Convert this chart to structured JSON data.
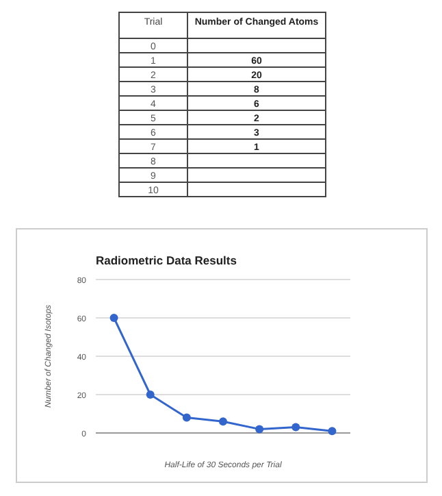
{
  "chart_data": [
    {
      "type": "heatmap",
      "ylabel": "Trial",
      "categories": [
        "Number of Changed Atoms"
      ],
      "y_categories": [
        "0",
        "1",
        "2",
        "3",
        "4",
        "5",
        "6",
        "7",
        "8",
        "9",
        "10"
      ],
      "cells": [
        [
          null
        ],
        [
          60
        ],
        [
          20
        ],
        [
          8
        ],
        [
          6
        ],
        [
          2
        ],
        [
          3
        ],
        [
          1
        ],
        [
          null
        ],
        [
          null
        ],
        [
          null
        ]
      ],
      "data_labels": true
    },
    {
      "type": "line",
      "title": "Radiometric Data Results",
      "xlabel": "Half-Life of 30 Seconds per Trial",
      "ylabel": "Number of Changed Isotops",
      "categories": [
        null,
        null,
        null,
        null,
        null,
        null,
        null
      ],
      "values": [
        60,
        20,
        8,
        6,
        2,
        3,
        1
      ],
      "color": "#3366cc",
      "ylim": [
        0,
        80
      ],
      "yticks": [
        0,
        20,
        40,
        60,
        80
      ],
      "grid": "y",
      "marker": "circle"
    }
  ]
}
